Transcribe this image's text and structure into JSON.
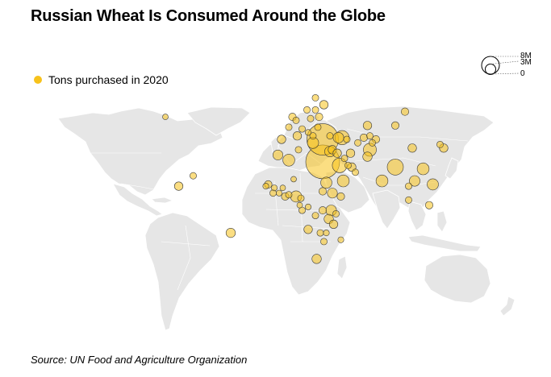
{
  "title": "Russian Wheat Is Consumed Around the Globe",
  "legend": {
    "label": "Tons purchased in 2020",
    "color": "#f7c21b"
  },
  "size_scale": {
    "labels": [
      "8M",
      "3M",
      "0"
    ]
  },
  "source": "Source: UN Food and Agriculture Organization",
  "map_data": {
    "unit": "tons",
    "max_value": 8000000,
    "points": [
      {
        "lon": -100,
        "lat": 53,
        "value": 200000
      },
      {
        "lon": -89,
        "lat": 13,
        "value": 500000
      },
      {
        "lon": -77,
        "lat": 19,
        "value": 300000
      },
      {
        "lon": -46,
        "lat": -14,
        "value": 600000
      },
      {
        "lon": -7,
        "lat": 31,
        "value": 700000
      },
      {
        "lon": 2,
        "lat": 28,
        "value": 1000000
      },
      {
        "lon": 10,
        "lat": 34,
        "value": 300000
      },
      {
        "lon": -15,
        "lat": 14,
        "value": 400000
      },
      {
        "lon": -17,
        "lat": 13,
        "value": 250000
      },
      {
        "lon": -11,
        "lat": 9,
        "value": 300000
      },
      {
        "lon": -6,
        "lat": 9,
        "value": 250000
      },
      {
        "lon": -3,
        "lat": 12,
        "value": 200000
      },
      {
        "lon": -10,
        "lat": 12,
        "value": 250000
      },
      {
        "lon": -1,
        "lat": 7,
        "value": 400000
      },
      {
        "lon": 2,
        "lat": 8,
        "value": 300000
      },
      {
        "lon": 8,
        "lat": 7,
        "value": 900000
      },
      {
        "lon": 6,
        "lat": 17,
        "value": 200000
      },
      {
        "lon": 12,
        "lat": 6,
        "value": 300000
      },
      {
        "lon": 11,
        "lat": 2,
        "value": 200000
      },
      {
        "lon": 13,
        "lat": -1,
        "value": 300000
      },
      {
        "lon": 24,
        "lat": -4,
        "value": 300000
      },
      {
        "lon": 18,
        "lat": 1,
        "value": 250000
      },
      {
        "lon": 30,
        "lat": -1,
        "value": 400000
      },
      {
        "lon": 30,
        "lat": 10,
        "value": 400000
      },
      {
        "lon": 33,
        "lat": 15,
        "value": 900000
      },
      {
        "lon": 38,
        "lat": 9,
        "value": 700000
      },
      {
        "lon": 37,
        "lat": -1,
        "value": 800000
      },
      {
        "lon": 35,
        "lat": -6,
        "value": 600000
      },
      {
        "lon": 39,
        "lat": -9,
        "value": 500000
      },
      {
        "lon": 45,
        "lat": 7,
        "value": 400000
      },
      {
        "lon": 41,
        "lat": -3,
        "value": 300000
      },
      {
        "lon": 45,
        "lat": -18,
        "value": 250000
      },
      {
        "lon": 18,
        "lat": -12,
        "value": 500000
      },
      {
        "lon": 28,
        "lat": -14,
        "value": 300000
      },
      {
        "lon": 33,
        "lat": -14,
        "value": 250000
      },
      {
        "lon": 25,
        "lat": -29,
        "value": 600000
      },
      {
        "lon": 31,
        "lat": -19,
        "value": 300000
      },
      {
        "lon": 30,
        "lat": 27,
        "value": 8000000
      },
      {
        "lon": 30,
        "lat": 40,
        "value": 7000000
      },
      {
        "lon": 36,
        "lat": 33,
        "value": 800000
      },
      {
        "lon": 38,
        "lat": 34,
        "value": 500000
      },
      {
        "lon": 42,
        "lat": 32,
        "value": 500000
      },
      {
        "lon": 44,
        "lat": 25,
        "value": 1500000
      },
      {
        "lon": 47,
        "lat": 16,
        "value": 1000000
      },
      {
        "lon": 48,
        "lat": 29,
        "value": 300000
      },
      {
        "lon": 54,
        "lat": 24,
        "value": 500000
      },
      {
        "lon": 51,
        "lat": 25,
        "value": 300000
      },
      {
        "lon": 57,
        "lat": 21,
        "value": 300000
      },
      {
        "lon": 53,
        "lat": 32,
        "value": 500000
      },
      {
        "lon": 59,
        "lat": 38,
        "value": 300000
      },
      {
        "lon": 64,
        "lat": 41,
        "value": 400000
      },
      {
        "lon": 67,
        "lat": 30,
        "value": 600000
      },
      {
        "lon": 69,
        "lat": 34,
        "value": 1200000
      },
      {
        "lon": 74,
        "lat": 40,
        "value": 400000
      },
      {
        "lon": 71,
        "lat": 38,
        "value": 300000
      },
      {
        "lon": 67,
        "lat": 48,
        "value": 500000
      },
      {
        "lon": 69,
        "lat": 42,
        "value": 300000
      },
      {
        "lon": 90,
        "lat": 24,
        "value": 1800000
      },
      {
        "lon": 79,
        "lat": 16,
        "value": 1000000
      },
      {
        "lon": 104,
        "lat": 35,
        "value": 500000
      },
      {
        "lon": 113,
        "lat": 23,
        "value": 1000000
      },
      {
        "lon": 106,
        "lat": 16,
        "value": 800000
      },
      {
        "lon": 101,
        "lat": 13,
        "value": 300000
      },
      {
        "lon": 101,
        "lat": 5,
        "value": 300000
      },
      {
        "lon": 121,
        "lat": 14,
        "value": 900000
      },
      {
        "lon": 118,
        "lat": 2,
        "value": 400000
      },
      {
        "lon": 127,
        "lat": 37,
        "value": 300000
      },
      {
        "lon": 130,
        "lat": 35,
        "value": 500000
      },
      {
        "lon": 90,
        "lat": 48,
        "value": 400000
      },
      {
        "lon": 98,
        "lat": 56,
        "value": 400000
      },
      {
        "lon": 5,
        "lat": 53,
        "value": 400000
      },
      {
        "lon": 2,
        "lat": 47,
        "value": 300000
      },
      {
        "lon": 8,
        "lat": 51,
        "value": 300000
      },
      {
        "lon": -4,
        "lat": 40,
        "value": 500000
      },
      {
        "lon": 9,
        "lat": 42,
        "value": 500000
      },
      {
        "lon": 13,
        "lat": 46,
        "value": 300000
      },
      {
        "lon": 20,
        "lat": 52,
        "value": 300000
      },
      {
        "lon": 17,
        "lat": 57,
        "value": 300000
      },
      {
        "lon": 22,
        "lat": 38,
        "value": 900000
      },
      {
        "lon": 18,
        "lat": 44,
        "value": 250000
      },
      {
        "lon": 22,
        "lat": 42,
        "value": 300000
      },
      {
        "lon": 26,
        "lat": 47,
        "value": 300000
      },
      {
        "lon": 24,
        "lat": 57,
        "value": 300000
      },
      {
        "lon": 27,
        "lat": 53,
        "value": 400000
      },
      {
        "lon": 31,
        "lat": 60,
        "value": 500000
      },
      {
        "lon": 24,
        "lat": 64,
        "value": 300000
      },
      {
        "lon": 43,
        "lat": 41,
        "value": 800000
      },
      {
        "lon": 46,
        "lat": 41,
        "value": 1400000
      },
      {
        "lon": 50,
        "lat": 40,
        "value": 300000
      },
      {
        "lon": 36,
        "lat": 42,
        "value": 300000
      }
    ]
  }
}
